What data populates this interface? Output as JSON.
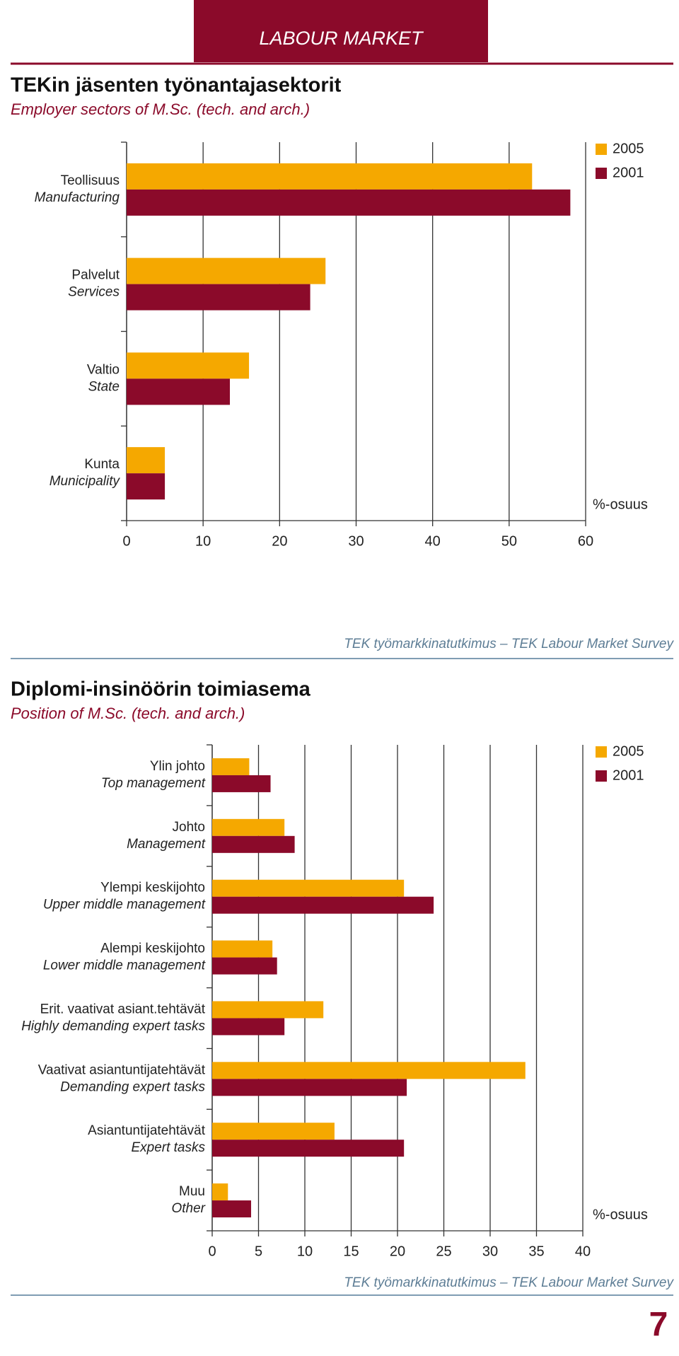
{
  "header": {
    "section": "LABOUR MARKET"
  },
  "page_number": "7",
  "chart_data": [
    {
      "type": "bar",
      "orientation": "horizontal",
      "title": "TEKin jäsenten työnantajasektorit",
      "subtitle": "Employer sectors of M.Sc. (tech. and arch.)",
      "categories": [
        "Teollisuus",
        "Palvelut",
        "Valtio",
        "Kunta"
      ],
      "category_translations": [
        "Manufacturing",
        "Services",
        "State",
        "Municipality"
      ],
      "series": [
        {
          "name": "2005",
          "color": "#f5a800",
          "values": [
            53,
            26,
            16,
            5
          ]
        },
        {
          "name": "2001",
          "color": "#8b0a2a",
          "values": [
            58,
            24,
            13.5,
            5
          ]
        }
      ],
      "xlim": [
        0,
        60
      ],
      "xticks": [
        0,
        10,
        20,
        30,
        40,
        50,
        60
      ],
      "x_label": "%-osuus",
      "grid": true,
      "legend": "right",
      "source": "TEK työmarkkinatutkimus – TEK Labour Market Survey"
    },
    {
      "type": "bar",
      "orientation": "horizontal",
      "title": "Diplomi-insinöörin toimiasema",
      "subtitle": "Position of M.Sc. (tech. and arch.)",
      "categories": [
        "Ylin johto",
        "Johto",
        "Ylempi keskijohto",
        "Alempi keskijohto",
        "Erit. vaativat asiant.tehtävät",
        "Vaativat asiantuntijatehtävät",
        "Asiantuntijatehtävät",
        "Muu"
      ],
      "category_translations": [
        "Top management",
        "Management",
        "Upper middle management",
        "Lower middle management",
        "Highly demanding expert tasks",
        "Demanding expert tasks",
        "Expert tasks",
        "Other"
      ],
      "series": [
        {
          "name": "2005",
          "color": "#f5a800",
          "values": [
            4,
            7.8,
            20.7,
            6.5,
            12,
            33.8,
            13.2,
            1.7
          ]
        },
        {
          "name": "2001",
          "color": "#8b0a2a",
          "values": [
            6.3,
            8.9,
            23.9,
            7,
            7.8,
            21,
            20.7,
            4.2
          ]
        }
      ],
      "xlim": [
        0,
        40
      ],
      "xticks": [
        0,
        5,
        10,
        15,
        20,
        25,
        30,
        35,
        40
      ],
      "x_label": "%-osuus",
      "grid": true,
      "legend": "right",
      "source": "TEK työmarkkinatutkimus – TEK Labour Market Survey"
    }
  ]
}
